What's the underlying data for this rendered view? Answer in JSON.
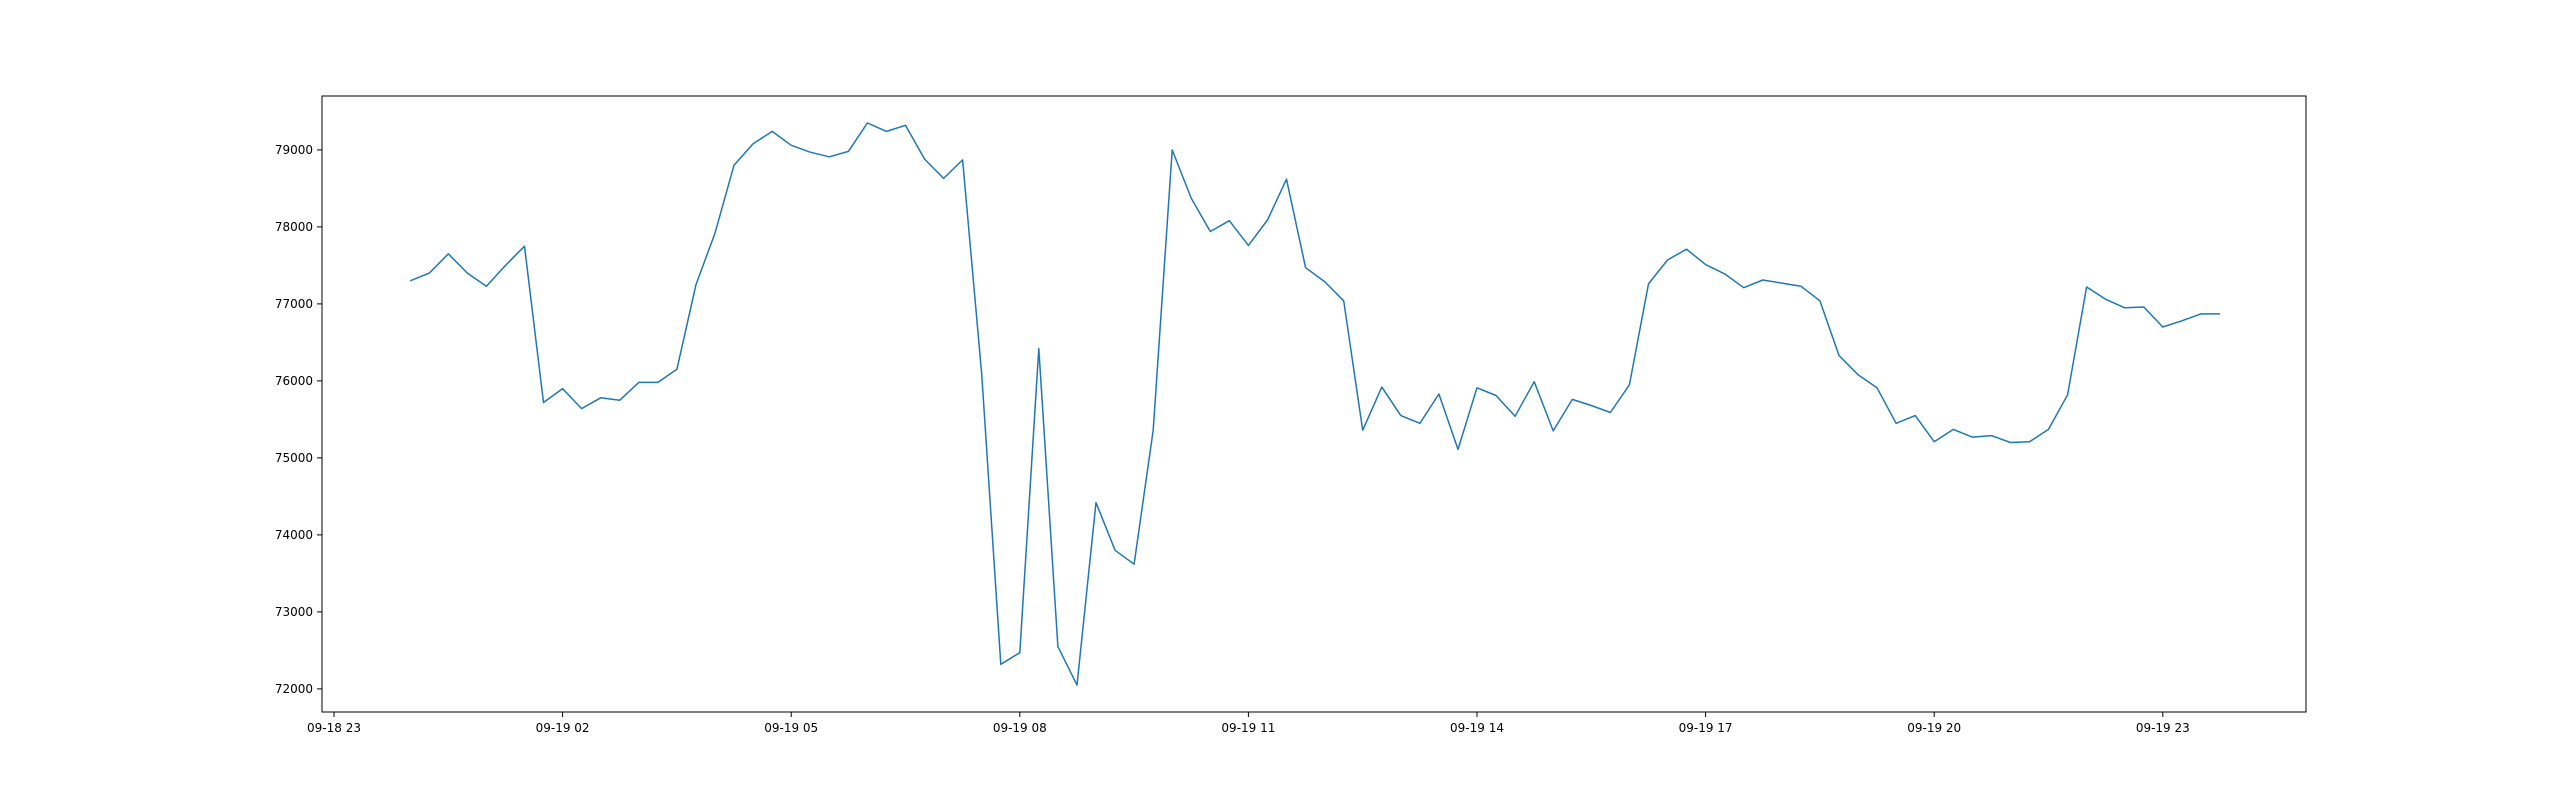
{
  "chart_data": {
    "type": "line",
    "title": "",
    "xlabel": "",
    "ylabel": "",
    "grid": false,
    "legend": "none",
    "x_tick_labels": [
      "09-18 23",
      "09-19 02",
      "09-19 05",
      "09-19 08",
      "09-19 11",
      "09-19 14",
      "09-19 17",
      "09-19 20",
      "09-19 23"
    ],
    "y_tick_labels": [
      "72000",
      "73000",
      "74000",
      "75000",
      "76000",
      "77000",
      "78000",
      "79000"
    ],
    "y_ticks": [
      72000,
      73000,
      74000,
      75000,
      76000,
      77000,
      78000,
      79000
    ],
    "ylim": [
      71700,
      79700
    ],
    "series": [
      {
        "color": "#1f77b4",
        "x": [
          "09-19 00:00",
          "09-19 00:15",
          "09-19 00:30",
          "09-19 00:45",
          "09-19 01:00",
          "09-19 01:15",
          "09-19 01:30",
          "09-19 01:45",
          "09-19 02:00",
          "09-19 02:15",
          "09-19 02:30",
          "09-19 02:45",
          "09-19 03:00",
          "09-19 03:15",
          "09-19 03:30",
          "09-19 03:45",
          "09-19 04:00",
          "09-19 04:15",
          "09-19 04:30",
          "09-19 04:45",
          "09-19 05:00",
          "09-19 05:15",
          "09-19 05:30",
          "09-19 05:45",
          "09-19 06:00",
          "09-19 06:15",
          "09-19 06:30",
          "09-19 06:45",
          "09-19 07:00",
          "09-19 07:15",
          "09-19 07:30",
          "09-19 07:45",
          "09-19 08:00",
          "09-19 08:15",
          "09-19 08:30",
          "09-19 08:45",
          "09-19 09:00",
          "09-19 09:15",
          "09-19 09:30",
          "09-19 09:45",
          "09-19 10:00",
          "09-19 10:15",
          "09-19 10:30",
          "09-19 10:45",
          "09-19 11:00",
          "09-19 11:15",
          "09-19 11:30",
          "09-19 11:45",
          "09-19 12:00",
          "09-19 12:15",
          "09-19 12:30",
          "09-19 12:45",
          "09-19 13:00",
          "09-19 13:15",
          "09-19 13:30",
          "09-19 13:45",
          "09-19 14:00",
          "09-19 14:15",
          "09-19 14:30",
          "09-19 14:45",
          "09-19 15:00",
          "09-19 15:15",
          "09-19 15:30",
          "09-19 15:45",
          "09-19 16:00",
          "09-19 16:15",
          "09-19 16:30",
          "09-19 16:45",
          "09-19 17:00",
          "09-19 17:15",
          "09-19 17:30",
          "09-19 17:45",
          "09-19 18:00",
          "09-19 18:15",
          "09-19 18:30",
          "09-19 18:45",
          "09-19 19:00",
          "09-19 19:15",
          "09-19 19:30",
          "09-19 19:45",
          "09-19 20:00",
          "09-19 20:15",
          "09-19 20:30",
          "09-19 20:45",
          "09-19 21:00",
          "09-19 21:15",
          "09-19 21:30",
          "09-19 21:45",
          "09-19 22:00",
          "09-19 22:15",
          "09-19 22:30",
          "09-19 22:45",
          "09-19 23:00",
          "09-19 23:15",
          "09-19 23:30",
          "09-19 23:45"
        ],
        "values": [
          77300,
          77400,
          77650,
          77400,
          77230,
          77500,
          77750,
          75720,
          75900,
          75640,
          75780,
          75750,
          75980,
          75980,
          76150,
          77250,
          77920,
          78800,
          79080,
          79240,
          79060,
          78970,
          78910,
          78980,
          79350,
          79240,
          79320,
          78880,
          78630,
          78870,
          76090,
          72320,
          72470,
          76420,
          72550,
          72050,
          74420,
          73800,
          73620,
          75360,
          79000,
          78370,
          77940,
          78080,
          77760,
          78090,
          78620,
          77470,
          77290,
          77040,
          75360,
          75920,
          75550,
          75450,
          75830,
          75110,
          75910,
          75810,
          75540,
          75990,
          75350,
          75760,
          75680,
          75590,
          75950,
          77260,
          77570,
          77710,
          77510,
          77390,
          77210,
          77310,
          77270,
          77230,
          77040,
          76330,
          76080,
          75910,
          75450,
          75550,
          75210,
          75370,
          75270,
          75290,
          75200,
          75210,
          75370,
          75820,
          77220,
          77060,
          76950,
          76960,
          76700,
          76780,
          76870,
          76870
        ]
      }
    ]
  }
}
